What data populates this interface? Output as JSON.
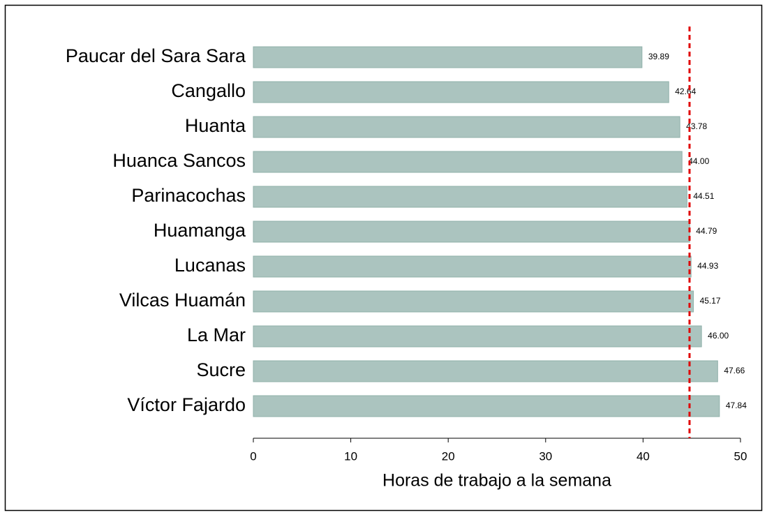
{
  "chart_data": {
    "type": "barh",
    "xlabel": "Horas de trabajo a la semana",
    "categories": [
      "Paucar del Sara Sara",
      "Cangallo",
      "Huanta",
      "Huanca Sancos",
      "Parinacochas",
      "Huamanga",
      "Lucanas",
      "Vilcas Huamán",
      "La Mar",
      "Sucre",
      "Víctor Fajardo"
    ],
    "values": [
      39.89,
      42.64,
      43.78,
      44.0,
      44.51,
      44.79,
      44.93,
      45.17,
      46.0,
      47.66,
      47.84
    ],
    "value_labels": [
      "39.89",
      "42.64",
      "43.78",
      "44.00",
      "44.51",
      "44.79",
      "44.93",
      "45.17",
      "46.00",
      "47.66",
      "47.84"
    ],
    "color": "#abc4bf",
    "xlim": [
      0,
      50
    ],
    "xticks": [
      0,
      10,
      20,
      30,
      40,
      50
    ],
    "reference_line": {
      "value": 44.77,
      "color": "#e00000"
    }
  }
}
